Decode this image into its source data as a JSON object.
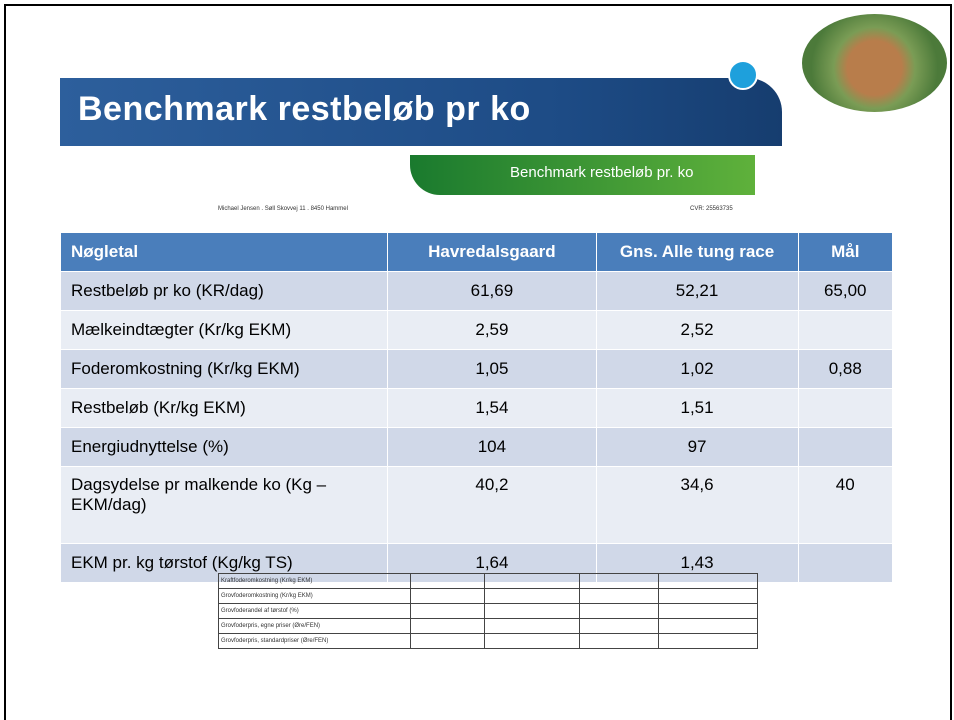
{
  "title": "Benchmark restbeløb pr ko",
  "report": {
    "banner": "Benchmark restbeløb pr. ko",
    "address": "Michael Jensen  .  Søll Skovvej 11  .  8450 Hammel",
    "cvr": "CVR: 25563735",
    "rows": [
      "Kraftfoderomkostning (Kr/kg EKM)",
      "Grovfoderomkostning (Kr/kg EKM)",
      "Grovfoderandel af tørstof (%)",
      "Grovfoderpris, egne priser (Øre/FEN)",
      "Grovfoderpris, standardpriser (Øre/FEN)"
    ]
  },
  "table": {
    "header": [
      "Nøgletal",
      "Havredalsgaard",
      "Gns. Alle tung race",
      "Mål"
    ],
    "rows": [
      [
        "Restbeløb pr ko (KR/dag)",
        "61,69",
        "52,21",
        "65,00"
      ],
      [
        "Mælkeindtægter (Kr/kg EKM)",
        "2,59",
        "2,52",
        ""
      ],
      [
        "Foderomkostning (Kr/kg EKM)",
        "1,05",
        "1,02",
        "0,88"
      ],
      [
        "Restbeløb (Kr/kg EKM)",
        "1,54",
        "1,51",
        ""
      ],
      [
        "Energiudnyttelse (%)",
        "104",
        "97",
        ""
      ],
      [
        "Dagsydelse pr malkende ko (Kg –EKM/dag)",
        "40,2",
        "34,6",
        "40"
      ],
      [
        "EKM pr. kg tørstof (Kg/kg TS)",
        "1,64",
        "1,43",
        ""
      ]
    ]
  }
}
